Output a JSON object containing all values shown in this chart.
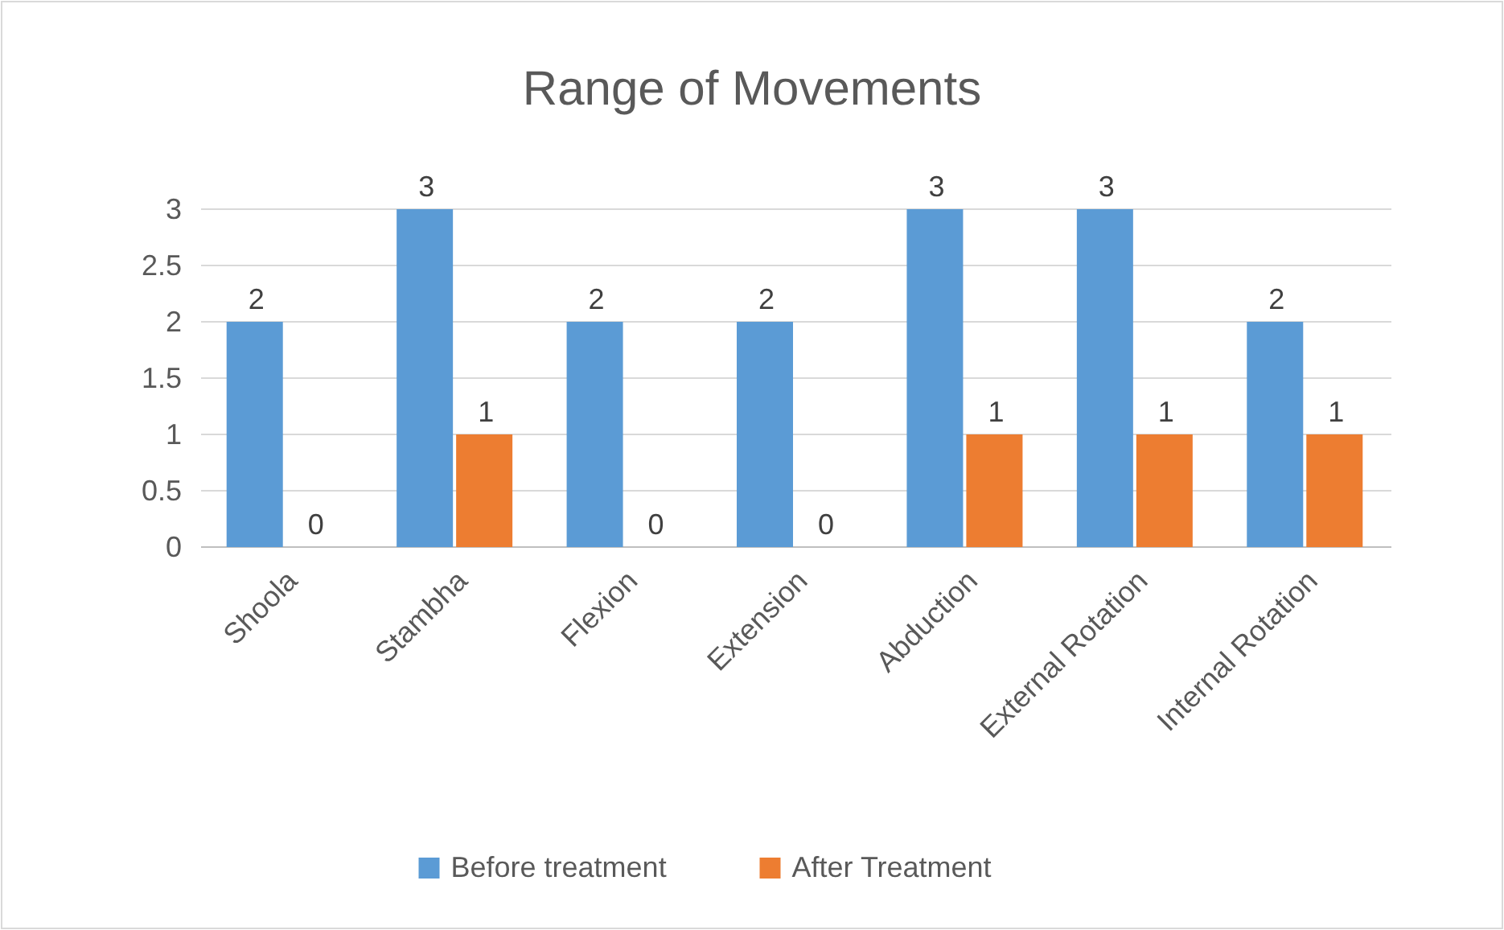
{
  "chart_data": {
    "type": "bar",
    "title": "Range of Movements",
    "categories": [
      "Shoola",
      "Stambha",
      "Flexion",
      "Extension",
      "Abduction",
      "External Rotation",
      "Internal Rotation"
    ],
    "series": [
      {
        "name": "Before treatment",
        "color": "#5b9bd5",
        "values": [
          2,
          3,
          2,
          2,
          3,
          3,
          2
        ]
      },
      {
        "name": "After Treatment",
        "color": "#ed7d31",
        "values": [
          0,
          1,
          0,
          0,
          1,
          1,
          1
        ]
      }
    ],
    "ylim": [
      0,
      3
    ],
    "yticks": [
      0,
      0.5,
      1,
      1.5,
      2,
      2.5,
      3
    ],
    "grid": "y",
    "legend": "bottom",
    "data_labels": true
  }
}
